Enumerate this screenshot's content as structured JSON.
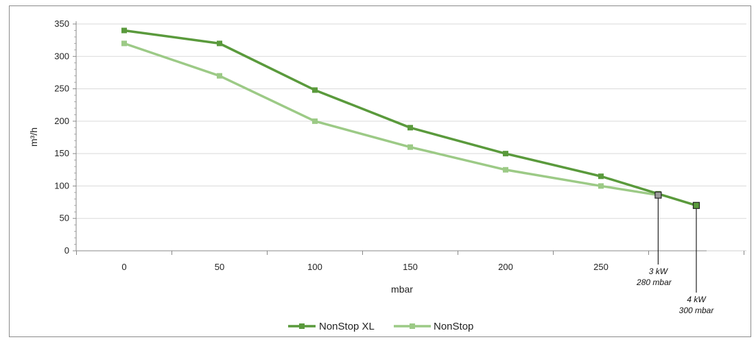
{
  "chart_data": {
    "type": "line",
    "xlabel": "mbar",
    "ylabel": "m³/h",
    "xlim": [
      -25,
      325
    ],
    "ylim": [
      0,
      350
    ],
    "x_ticks": [
      0,
      50,
      100,
      150,
      200,
      250
    ],
    "y_ticks": [
      0,
      50,
      100,
      150,
      200,
      250,
      300,
      350
    ],
    "grid": true,
    "legend": "bottom-center",
    "series": [
      {
        "name": "NonStop XL",
        "color": "#5a9a3c",
        "x": [
          0,
          50,
          100,
          150,
          200,
          250,
          280,
          300
        ],
        "y": [
          340,
          320,
          248,
          190,
          150,
          115,
          88,
          70
        ]
      },
      {
        "name": "NonStop",
        "color": "#9cca86",
        "x": [
          0,
          50,
          100,
          150,
          200,
          250,
          280
        ],
        "y": [
          320,
          270,
          200,
          160,
          125,
          100,
          86
        ]
      }
    ],
    "annotations": [
      {
        "x": 280,
        "y": 86,
        "line1": "3 kW",
        "line2": "280 mbar"
      },
      {
        "x": 300,
        "y": 70,
        "line1": "4 kW",
        "line2": "300 mbar"
      }
    ]
  }
}
